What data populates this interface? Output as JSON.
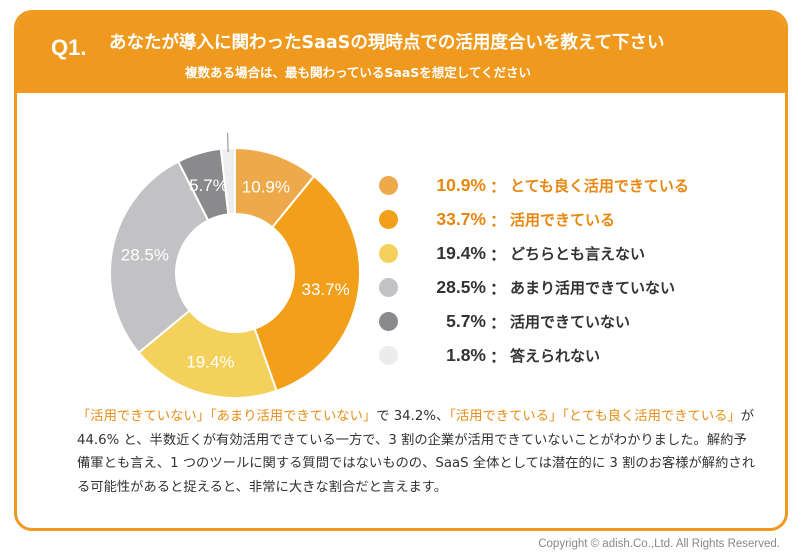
{
  "header": {
    "qnum": "Q1.",
    "title": "あなたが導入に関わったSaaSの現時点での活用度合いを教えて下さい",
    "subtitle": "複数ある場合は、最も関わっているSaaSを想定してください"
  },
  "chart_data": {
    "type": "pie",
    "donut": true,
    "unit": "%",
    "slices": [
      {
        "label": "とても良く活用できている",
        "value": 10.9,
        "color": "#eda94a",
        "text_color": "#ffffff",
        "legend_color": "#e8870f"
      },
      {
        "label": "活用できている",
        "value": 33.7,
        "color": "#f29f1a",
        "text_color": "#ffffff",
        "legend_color": "#e8870f"
      },
      {
        "label": "どちらとも言えない",
        "value": 19.4,
        "color": "#f3d15c",
        "text_color": "#ffffff",
        "legend_color": "#333333"
      },
      {
        "label": "あまり活用できていない",
        "value": 28.5,
        "color": "#c2c2c4",
        "text_color": "#ffffff",
        "legend_color": "#333333"
      },
      {
        "label": "活用できていない",
        "value": 5.7,
        "color": "#8a8a8c",
        "text_color": "#ffffff",
        "legend_color": "#333333"
      },
      {
        "label": "答えられない",
        "value": 1.8,
        "color": "#eeeeee",
        "text_color": "#555555",
        "legend_color": "#333333"
      }
    ]
  },
  "body": {
    "seg1": "「活用できていない」「あまり活用できていない」",
    "seg2": "で 34.2%、",
    "seg3": "「活用できている」「とても良く活用できている」",
    "seg4": "が 44.6% と、半数近くが有効活用できている一方で、3 割の企業が活用できていないことがわかりました。解約予備軍とも言え、1 つのツールに関する質問ではないものの、SaaS 全体としては潜在的に 3 割のお客様が解約される可能性があると捉えると、非常に大きな割合だと言えます。"
  },
  "footer": {
    "copyright": "Copyright © adish.Co.,Ltd.  All Rights Reserved."
  }
}
